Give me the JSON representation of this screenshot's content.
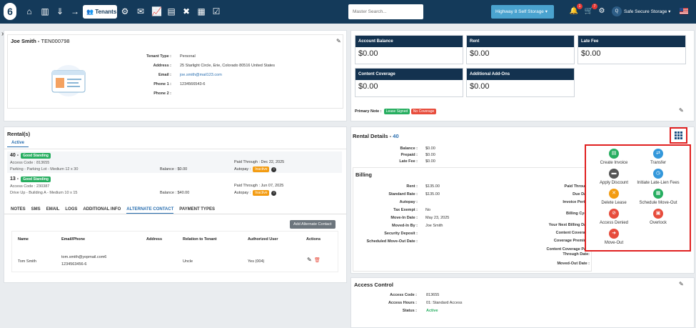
{
  "header": {
    "logo": "6",
    "tenants_label": "Tenants",
    "search_placeholder": "Master Search...",
    "facility": "Highway 8 Self Storage",
    "notif_count": "1",
    "cart_count": "7",
    "user_initial": "Q",
    "user_name": "Safe Secure Storage"
  },
  "tenant": {
    "name": "Joe Smith",
    "id": "TEN000798",
    "fields": [
      {
        "k": "Tenant Type :",
        "v": "Personal"
      },
      {
        "k": "Address :",
        "v": "25 Starlight Circle, Erie, Colorado 80516 United States"
      },
      {
        "k": "Email :",
        "v": "joe.smith@mail123.com"
      },
      {
        "k": "Phone 1 :",
        "v": "1234566543-6"
      },
      {
        "k": "Phone 2 :",
        "v": ""
      }
    ]
  },
  "cards": [
    {
      "t": "Account Balance",
      "v": "$0.00"
    },
    {
      "t": "Rent",
      "v": "$0.00"
    },
    {
      "t": "Late Fee",
      "v": "$0.00"
    },
    {
      "t": "Content Coverage",
      "v": "$0.00"
    },
    {
      "t": "Additional Add-Ons",
      "v": "$0.00"
    }
  ],
  "primary_note": {
    "label": "Primary Note :",
    "tags": [
      "Lease Signed",
      "No Coverage"
    ]
  },
  "rentals": {
    "title": "Rental(s)",
    "tab": "Active",
    "items": [
      {
        "unit": "40 -",
        "status": "Good Standing",
        "access": "Access Code : 813655",
        "desc": "Parking - Parking Lot - Medium 12 x 30",
        "balance": "Balance : $0.00",
        "paid": "Paid Through : Dec 22, 2025",
        "autopay": "Autopay :",
        "ap": "Inactive"
      },
      {
        "unit": "13 -",
        "status": "Good Standing",
        "access": "Access Code : 230387",
        "desc": "Drive Up - Building A - Medium 10 x 15",
        "balance": "Balance : $40.00",
        "paid": "Paid Through : Jun 07, 2025",
        "autopay": "Autopay :",
        "ap": "Inactive"
      }
    ]
  },
  "subtabs": [
    "NOTES",
    "SMS",
    "EMAIL",
    "LOGS",
    "ADDITIONAL INFO",
    "ALTERNATE CONTACT",
    "PAYMENT TYPES"
  ],
  "alt": {
    "add": "Add Alternate Contact",
    "cols": [
      "Name",
      "Email/Phone",
      "Address",
      "Relation to Tenant",
      "Authorized User",
      "Actions"
    ],
    "row": {
      "name": "Tom Smith",
      "email": "tom.smith@yopmail.com6",
      "phone": "1234563456-6",
      "address": "",
      "relation": "Uncle",
      "auth": "Yes (004)"
    }
  },
  "rental_details": {
    "title": "Rental Details -",
    "unit": "40",
    "top": [
      {
        "k": "Balance :",
        "v": "$0.00"
      },
      {
        "k": "Prepaid :",
        "v": "$0.00"
      },
      {
        "k": "Late Fee :",
        "v": "$0.00"
      }
    ],
    "billing_title": "Billing",
    "billing": [
      {
        "k": "Rent :",
        "v": "$135.00"
      },
      {
        "k": "Standard Rate :",
        "v": "$135.00"
      },
      {
        "k": "Autopay :",
        "v": ""
      },
      {
        "k": "Tax Exempt :",
        "v": "No"
      },
      {
        "k": "Move-In Date :",
        "v": "May 23, 2025"
      },
      {
        "k": "Moved-In By :",
        "v": "Joe Smith"
      },
      {
        "k": "Security Deposit :",
        "v": ""
      },
      {
        "k": "Scheduled Move-Out Date :",
        "v": ""
      }
    ],
    "right": [
      "Paid Through",
      "Due Date",
      "Invoice Period",
      "Billing Cycle",
      "Your Next Billing Date",
      "Content Coverage",
      "Coverage Premium",
      "Content Coverage Paid Through Date:",
      "Moved-Out Date :"
    ]
  },
  "actions": [
    {
      "l": "Create Invoice",
      "c": "#27ae60",
      "i": "▤"
    },
    {
      "l": "Transfer",
      "c": "#3498db",
      "i": "⇄"
    },
    {
      "l": "Apply Discount",
      "c": "#555555",
      "i": "▬"
    },
    {
      "l": "Initiate Late-Lien Fees",
      "c": "#3498db",
      "i": "◷"
    },
    {
      "l": "Delete Lease",
      "c": "#f39c12",
      "i": "✕"
    },
    {
      "l": "Schedule Move-Out",
      "c": "#27ae60",
      "i": "▦"
    },
    {
      "l": "Access Denied",
      "c": "#e74c3c",
      "i": "⊘"
    },
    {
      "l": "Overlock",
      "c": "#e74c3c",
      "i": "▣"
    },
    {
      "l": "Move-Out",
      "c": "#e74c3c",
      "i": "➜"
    }
  ],
  "access": {
    "title": "Access Control",
    "fields": [
      {
        "k": "Access Code :",
        "v": "813655"
      },
      {
        "k": "Access Hours :",
        "v": "01: Standard Access"
      },
      {
        "k": "Status :",
        "v": "Active"
      }
    ]
  }
}
